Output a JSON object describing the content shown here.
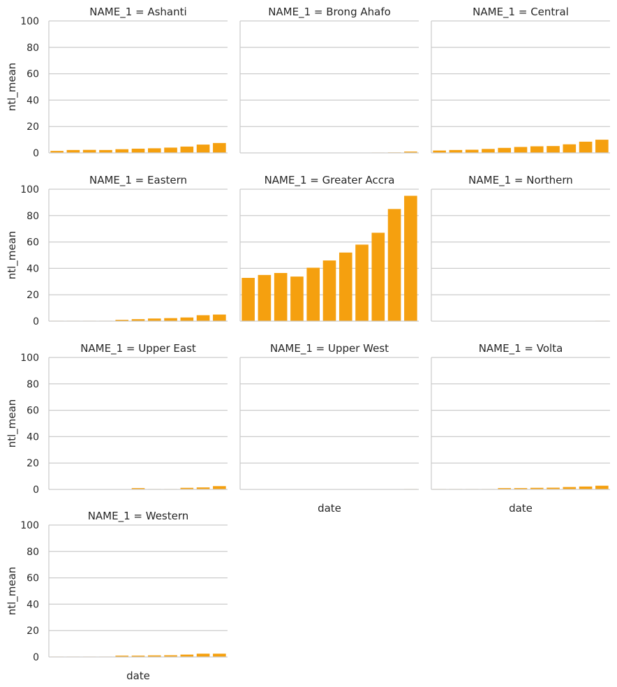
{
  "chart_data": [
    {
      "type": "bar",
      "title": "NAME_1 = Ashanti",
      "ylabel": "ntl_mean",
      "xlabel": "",
      "ylim": [
        0,
        100
      ],
      "yticks": [
        "0",
        "20",
        "40",
        "60",
        "80",
        "100"
      ],
      "values": [
        1.5,
        2.2,
        2.3,
        2.2,
        2.8,
        3.2,
        3.5,
        4.0,
        4.8,
        6.3,
        7.5
      ],
      "color": "#f5a00f",
      "grid": "horizontal"
    },
    {
      "type": "bar",
      "title": "NAME_1 = Brong Ahafo",
      "ylabel": "",
      "xlabel": "",
      "ylim": [
        0,
        100
      ],
      "yticks": [],
      "values": [
        0.1,
        0.1,
        0.1,
        0.1,
        0.1,
        0.1,
        0.2,
        0.2,
        0.3,
        0.4,
        1.0
      ],
      "color": "#f5a00f",
      "grid": "horizontal"
    },
    {
      "type": "bar",
      "title": "NAME_1 = Central",
      "ylabel": "",
      "xlabel": "",
      "ylim": [
        0,
        100
      ],
      "yticks": [],
      "values": [
        1.8,
        2.2,
        2.4,
        3.0,
        3.8,
        4.5,
        5.0,
        5.2,
        6.5,
        8.5,
        10.0
      ],
      "color": "#f5a00f",
      "grid": "horizontal"
    },
    {
      "type": "bar",
      "title": "NAME_1 = Eastern",
      "ylabel": "ntl_mean",
      "xlabel": "",
      "ylim": [
        0,
        100
      ],
      "yticks": [
        "0",
        "20",
        "40",
        "60",
        "80",
        "100"
      ],
      "values": [
        0.3,
        0.3,
        0.3,
        0.3,
        1.0,
        1.5,
        2.0,
        2.3,
        2.8,
        4.5,
        5.0
      ],
      "color": "#f5a00f",
      "grid": "horizontal"
    },
    {
      "type": "bar",
      "title": "NAME_1 = Greater Accra",
      "ylabel": "",
      "xlabel": "",
      "ylim": [
        0,
        100
      ],
      "yticks": [],
      "values": [
        32.8,
        35.0,
        36.5,
        33.8,
        40.5,
        46.0,
        52.0,
        58.0,
        67.0,
        85.0,
        95.0
      ],
      "color": "#f5a00f",
      "grid": "horizontal"
    },
    {
      "type": "bar",
      "title": "NAME_1 = Northern",
      "ylabel": "",
      "xlabel": "",
      "ylim": [
        0,
        100
      ],
      "yticks": [],
      "values": [
        0.1,
        0.1,
        0.1,
        0.1,
        0.1,
        0.1,
        0.1,
        0.1,
        0.1,
        0.2,
        0.3
      ],
      "color": "#f5a00f",
      "grid": "horizontal"
    },
    {
      "type": "bar",
      "title": "NAME_1 = Upper East",
      "ylabel": "ntl_mean",
      "xlabel": "",
      "ylim": [
        0,
        100
      ],
      "yticks": [
        "0",
        "20",
        "40",
        "60",
        "80",
        "100"
      ],
      "values": [
        0.1,
        0.1,
        0.1,
        0.1,
        0.2,
        1.0,
        0.3,
        0.3,
        1.2,
        1.5,
        2.5
      ],
      "color": "#f5a00f",
      "grid": "horizontal"
    },
    {
      "type": "bar",
      "title": "NAME_1 = Upper West",
      "ylabel": "",
      "xlabel": "date",
      "ylim": [
        0,
        100
      ],
      "yticks": [],
      "values": [
        0.1,
        0.1,
        0.1,
        0.1,
        0.1,
        0.1,
        0.1,
        0.1,
        0.1,
        0.2,
        0.3
      ],
      "color": "#f5a00f",
      "grid": "horizontal"
    },
    {
      "type": "bar",
      "title": "NAME_1 = Volta",
      "ylabel": "",
      "xlabel": "date",
      "ylim": [
        0,
        100
      ],
      "yticks": [],
      "values": [
        0.3,
        0.3,
        0.3,
        0.3,
        1.0,
        1.0,
        1.2,
        1.3,
        1.8,
        2.2,
        2.8
      ],
      "color": "#f5a00f",
      "grid": "horizontal"
    },
    {
      "type": "bar",
      "title": "NAME_1 = Western",
      "ylabel": "ntl_mean",
      "xlabel": "date",
      "ylim": [
        0,
        100
      ],
      "yticks": [
        "0",
        "20",
        "40",
        "60",
        "80",
        "100"
      ],
      "values": [
        0.3,
        0.3,
        0.3,
        0.3,
        1.0,
        1.0,
        1.2,
        1.3,
        1.8,
        2.5,
        2.5
      ],
      "color": "#f5a00f",
      "grid": "horizontal"
    }
  ]
}
